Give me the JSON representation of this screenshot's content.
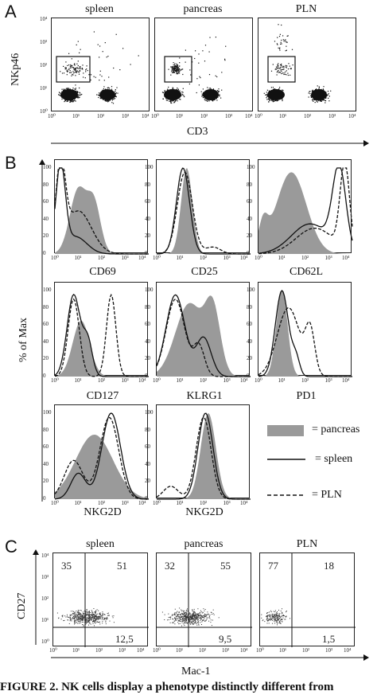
{
  "panelA": {
    "letter": "A",
    "titles": [
      "spleen",
      "pancreas",
      "PLN"
    ],
    "ylabel": "NKp46",
    "xlabel": "CD3",
    "ticks": [
      "10^0",
      "10^1",
      "10^2",
      "10^3",
      "10^4"
    ]
  },
  "panelB": {
    "letter": "B",
    "ylabel": "% of Max",
    "markers": [
      "CD69",
      "CD25",
      "CD62L",
      "CD127",
      "KLRG1",
      "PD1",
      "NKG2D",
      "NKG2D"
    ],
    "yticks": [
      "0",
      "20",
      "40",
      "60",
      "80",
      "100"
    ],
    "legend": {
      "pancreas": "= pancreas",
      "spleen": "= spleen",
      "pln": "= PLN"
    }
  },
  "panelC": {
    "letter": "C",
    "titles": [
      "spleen",
      "pancreas",
      "PLN"
    ],
    "ylabel": "CD27",
    "xlabel": "Mac-1",
    "quadrants": [
      {
        "ul": "35",
        "ur": "51",
        "lr": "12,5"
      },
      {
        "ul": "32",
        "ur": "55",
        "lr": "9,5"
      },
      {
        "ul": "77",
        "ur": "18",
        "lr": "1,5"
      }
    ]
  },
  "caption": "FIGURE 2.  NK cells display a phenotype distinctly different from"
}
